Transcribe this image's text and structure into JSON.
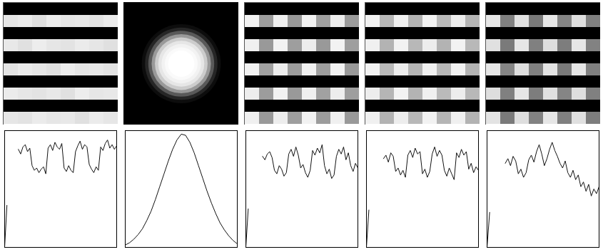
{
  "images": [
    {
      "type": "grid",
      "cells": [
        [
          0,
          0,
          0,
          0,
          0,
          0,
          0,
          0
        ],
        [
          0.9,
          0.92,
          0.88,
          0.93,
          0.9,
          0.91,
          0.89,
          0.92
        ],
        [
          0,
          0,
          0,
          0,
          0,
          0,
          0,
          0
        ],
        [
          0.91,
          0.88,
          0.93,
          0.9,
          0.89,
          0.92,
          0.9,
          0.88
        ],
        [
          0,
          0,
          0,
          0,
          0,
          0,
          0,
          0
        ],
        [
          0.89,
          0.92,
          0.9,
          0.88,
          0.93,
          0.9,
          0.91,
          0.89
        ],
        [
          0,
          0,
          0,
          0,
          0,
          0,
          0,
          0
        ],
        [
          0.92,
          0.9,
          0.89,
          0.91,
          0.88,
          0.93,
          0.9,
          0.91
        ],
        [
          0,
          0,
          0,
          0,
          0,
          0,
          0,
          0
        ],
        [
          0.9,
          0.89,
          0.92,
          0.9,
          0.91,
          0.88,
          0.92,
          0.9
        ]
      ]
    },
    {
      "type": "radial",
      "values": [
        1,
        1,
        1,
        1,
        0.98,
        0.95,
        0.9,
        0.8,
        0.6,
        0.35,
        0.15,
        0.05,
        0
      ]
    },
    {
      "type": "grid",
      "cells": [
        [
          0,
          0,
          0,
          0,
          0,
          0,
          0,
          0
        ],
        [
          0.95,
          0.62,
          0.94,
          0.6,
          0.95,
          0.63,
          0.93,
          0.61
        ],
        [
          0,
          0,
          0,
          0,
          0,
          0,
          0,
          0
        ],
        [
          0.94,
          0.6,
          0.95,
          0.62,
          0.93,
          0.6,
          0.95,
          0.62
        ],
        [
          0,
          0,
          0,
          0,
          0,
          0,
          0,
          0
        ],
        [
          0.95,
          0.63,
          0.93,
          0.61,
          0.94,
          0.62,
          0.95,
          0.6
        ],
        [
          0,
          0,
          0,
          0,
          0,
          0,
          0,
          0
        ],
        [
          0.93,
          0.61,
          0.95,
          0.6,
          0.94,
          0.63,
          0.93,
          0.62
        ],
        [
          0,
          0,
          0,
          0,
          0,
          0,
          0,
          0
        ],
        [
          0.94,
          0.6,
          0.93,
          0.62,
          0.95,
          0.61,
          0.94,
          0.6
        ]
      ]
    },
    {
      "type": "grid",
      "cells": [
        [
          0,
          0,
          0,
          0,
          0,
          0,
          0,
          0
        ],
        [
          0.95,
          0.72,
          0.94,
          0.7,
          0.95,
          0.73,
          0.93,
          0.71
        ],
        [
          0,
          0,
          0,
          0,
          0,
          0,
          0,
          0
        ],
        [
          0.94,
          0.7,
          0.95,
          0.72,
          0.93,
          0.7,
          0.95,
          0.72
        ],
        [
          0,
          0,
          0,
          0,
          0,
          0,
          0,
          0
        ],
        [
          0.95,
          0.73,
          0.93,
          0.71,
          0.94,
          0.72,
          0.95,
          0.7
        ],
        [
          0,
          0,
          0,
          0,
          0,
          0,
          0,
          0
        ],
        [
          0.93,
          0.71,
          0.95,
          0.7,
          0.94,
          0.73,
          0.93,
          0.72
        ],
        [
          0,
          0,
          0,
          0,
          0,
          0,
          0,
          0
        ],
        [
          0.94,
          0.7,
          0.93,
          0.72,
          0.95,
          0.71,
          0.94,
          0.7
        ]
      ]
    },
    {
      "type": "grid",
      "cells": [
        [
          0,
          0,
          0,
          0,
          0,
          0,
          0,
          0
        ],
        [
          0.9,
          0.5,
          0.88,
          0.48,
          0.9,
          0.52,
          0.87,
          0.5
        ],
        [
          0,
          0,
          0,
          0,
          0,
          0,
          0,
          0
        ],
        [
          0.88,
          0.48,
          0.9,
          0.5,
          0.87,
          0.49,
          0.9,
          0.51
        ],
        [
          0,
          0,
          0,
          0,
          0,
          0,
          0,
          0
        ],
        [
          0.9,
          0.52,
          0.87,
          0.5,
          0.89,
          0.48,
          0.9,
          0.5
        ],
        [
          0,
          0,
          0,
          0,
          0,
          0,
          0,
          0
        ],
        [
          0.87,
          0.5,
          0.9,
          0.49,
          0.88,
          0.52,
          0.87,
          0.5
        ],
        [
          0,
          0,
          0,
          0,
          0,
          0,
          0,
          0
        ],
        [
          0.89,
          0.48,
          0.87,
          0.51,
          0.9,
          0.5,
          0.88,
          0.49
        ]
      ]
    }
  ],
  "chart_data": [
    {
      "type": "line",
      "color": "#111111",
      "xlim": [
        0,
        49
      ],
      "ylim": [
        0,
        100
      ],
      "tick_labels": false,
      "values": [
        0,
        36,
        null,
        null,
        null,
        null,
        84,
        80,
        86,
        88,
        82,
        85,
        70,
        66,
        68,
        64,
        67,
        69,
        63,
        85,
        88,
        83,
        90,
        86,
        84,
        89,
        68,
        65,
        70,
        66,
        64,
        82,
        87,
        91,
        84,
        88,
        86,
        71,
        67,
        64,
        69,
        66,
        86,
        83,
        89,
        92,
        85,
        88,
        84,
        87
      ]
    },
    {
      "type": "line",
      "color": "#111111",
      "xlim": [
        0,
        26
      ],
      "ylim": [
        0,
        100
      ],
      "tick_labels": false,
      "values": [
        2,
        4,
        7,
        11,
        16,
        23,
        31,
        41,
        52,
        63,
        74,
        84,
        92,
        97,
        96,
        90,
        81,
        70,
        59,
        48,
        38,
        29,
        21,
        15,
        10,
        6,
        3
      ]
    },
    {
      "type": "line",
      "color": "#111111",
      "xlim": [
        0,
        47
      ],
      "ylim": [
        0,
        100
      ],
      "tick_labels": false,
      "values": [
        0,
        33,
        null,
        null,
        null,
        null,
        null,
        78,
        75,
        80,
        82,
        77,
        66,
        63,
        70,
        67,
        61,
        64,
        80,
        84,
        78,
        86,
        79,
        68,
        71,
        64,
        60,
        66,
        83,
        79,
        85,
        81,
        88,
        70,
        63,
        67,
        59,
        62,
        78,
        84,
        80,
        86,
        75,
        81,
        70,
        65,
        72,
        68
      ]
    },
    {
      "type": "line",
      "color": "#111111",
      "xlim": [
        0,
        46
      ],
      "ylim": [
        0,
        100
      ],
      "tick_labels": false,
      "values": [
        0,
        32,
        null,
        null,
        null,
        null,
        null,
        76,
        79,
        73,
        81,
        78,
        65,
        68,
        62,
        66,
        60,
        79,
        83,
        77,
        85,
        80,
        82,
        63,
        67,
        60,
        65,
        80,
        86,
        78,
        83,
        79,
        66,
        61,
        68,
        63,
        58,
        81,
        77,
        84,
        79,
        82,
        67,
        72,
        64,
        69,
        66
      ]
    },
    {
      "type": "line",
      "color": "#111111",
      "xlim": [
        0,
        43
      ],
      "ylim": [
        0,
        100
      ],
      "tick_labels": false,
      "values": [
        0,
        30,
        null,
        null,
        null,
        null,
        null,
        72,
        76,
        70,
        78,
        74,
        63,
        67,
        60,
        64,
        75,
        79,
        73,
        82,
        88,
        80,
        70,
        76,
        84,
        90,
        83,
        78,
        72,
        68,
        74,
        64,
        60,
        66,
        58,
        62,
        52,
        56,
        48,
        54,
        44,
        50,
        46,
        52
      ]
    }
  ]
}
